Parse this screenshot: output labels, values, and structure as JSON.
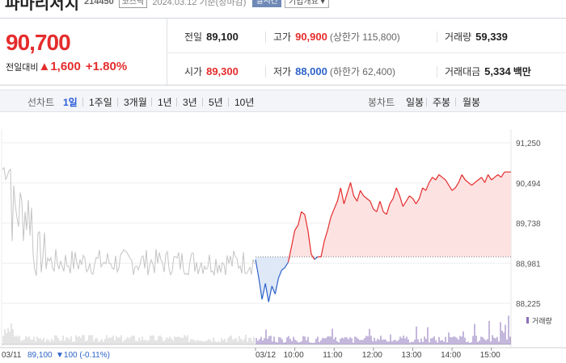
{
  "header": {
    "stock_name": "파마리서치",
    "code": "214450",
    "market_badge": "코스닥",
    "date_text": "2024.03.12 기준(장마감)",
    "realtime_label": "실시간",
    "profile_label": "기업개요 ▾"
  },
  "price": {
    "current": "90,700",
    "change_label": "전일대비",
    "change": "▲1,600",
    "change_pct": "+1.80%"
  },
  "stats": {
    "prev_close_label": "전일",
    "prev_close": "89,100",
    "high_label": "고가",
    "high": "90,900",
    "upper_limit": "(상한가 115,800)",
    "volume_label": "거래량",
    "volume": "59,339",
    "open_label": "시가",
    "open": "89,300",
    "low_label": "저가",
    "low": "88,000",
    "lower_limit": "(하한가 62,400)",
    "amount_label": "거래대금",
    "amount": "5,334",
    "amount_unit": "백만"
  },
  "tabs": {
    "line_chart_label": "선차트",
    "periods": [
      "1일",
      "1주일",
      "3개월",
      "1년",
      "3년",
      "5년",
      "10년"
    ],
    "active_period": "1일",
    "candle_label": "봉차트",
    "candles": [
      "일봉",
      "주봉",
      "월봉"
    ]
  },
  "colors": {
    "up": "#e52c2c",
    "down": "#2d63c8",
    "accent": "#2a5bd7",
    "prev_day": "#bbbbbb"
  },
  "chart_data": {
    "type": "line",
    "y_ticks": [
      "91,250",
      "90,494",
      "89,738",
      "88,981",
      "88,225"
    ],
    "ylim": [
      88225,
      91250
    ],
    "baseline": 89100,
    "x_ticks": [
      "03/12",
      "10:00",
      "11:00",
      "12:00",
      "13:00",
      "14:00",
      "15:00"
    ],
    "prev_day_label": "03/11",
    "prev_day_close": "89,100",
    "prev_day_change": "▼100 (-0.11%)",
    "volume_legend": "거래량",
    "series": [
      {
        "x": [
          "09:00",
          "09:05",
          "09:10",
          "09:15",
          "09:20",
          "09:25",
          "09:30",
          "09:35",
          "09:40",
          "09:45",
          "09:50",
          "09:55",
          "10:00",
          "10:05",
          "10:10",
          "10:15",
          "10:20",
          "10:25",
          "10:30",
          "10:35",
          "10:40",
          "10:45",
          "10:50",
          "10:55",
          "11:00",
          "11:05",
          "11:10",
          "11:15",
          "11:20",
          "11:25",
          "11:30",
          "11:35",
          "11:40",
          "11:45",
          "11:50",
          "11:55",
          "12:00",
          "12:05",
          "12:10",
          "12:15",
          "12:20",
          "12:25",
          "12:30",
          "12:35",
          "12:40",
          "12:45",
          "12:50",
          "12:55",
          "13:00",
          "13:05",
          "13:10",
          "13:15",
          "13:20",
          "13:25",
          "13:30",
          "13:35",
          "13:40",
          "13:45",
          "13:50",
          "13:55",
          "14:00",
          "14:05",
          "14:10",
          "14:15",
          "14:20",
          "14:25",
          "14:30",
          "14:35",
          "14:40",
          "14:45",
          "14:50",
          "14:55",
          "15:00",
          "15:05",
          "15:10",
          "15:15",
          "15:20",
          "15:30"
        ],
        "values": [
          89050,
          88700,
          88300,
          88600,
          88250,
          88550,
          88400,
          88700,
          88850,
          88900,
          89000,
          89300,
          89600,
          89700,
          89950,
          89900,
          89600,
          89150,
          89050,
          89100,
          89100,
          89400,
          89600,
          89850,
          90000,
          90150,
          90400,
          90100,
          90300,
          90500,
          90250,
          90150,
          90350,
          90250,
          90200,
          90150,
          90000,
          89950,
          90150,
          89950,
          89900,
          90100,
          90200,
          90400,
          90250,
          90050,
          90150,
          90250,
          90200,
          90100,
          90200,
          90400,
          90350,
          90500,
          90600,
          90550,
          90650,
          90600,
          90550,
          90450,
          90350,
          90400,
          90500,
          90650,
          90550,
          90500,
          90450,
          90500,
          90550,
          90600,
          90500,
          90650,
          90550,
          90600,
          90650,
          90600,
          90700,
          90700
        ]
      }
    ]
  }
}
